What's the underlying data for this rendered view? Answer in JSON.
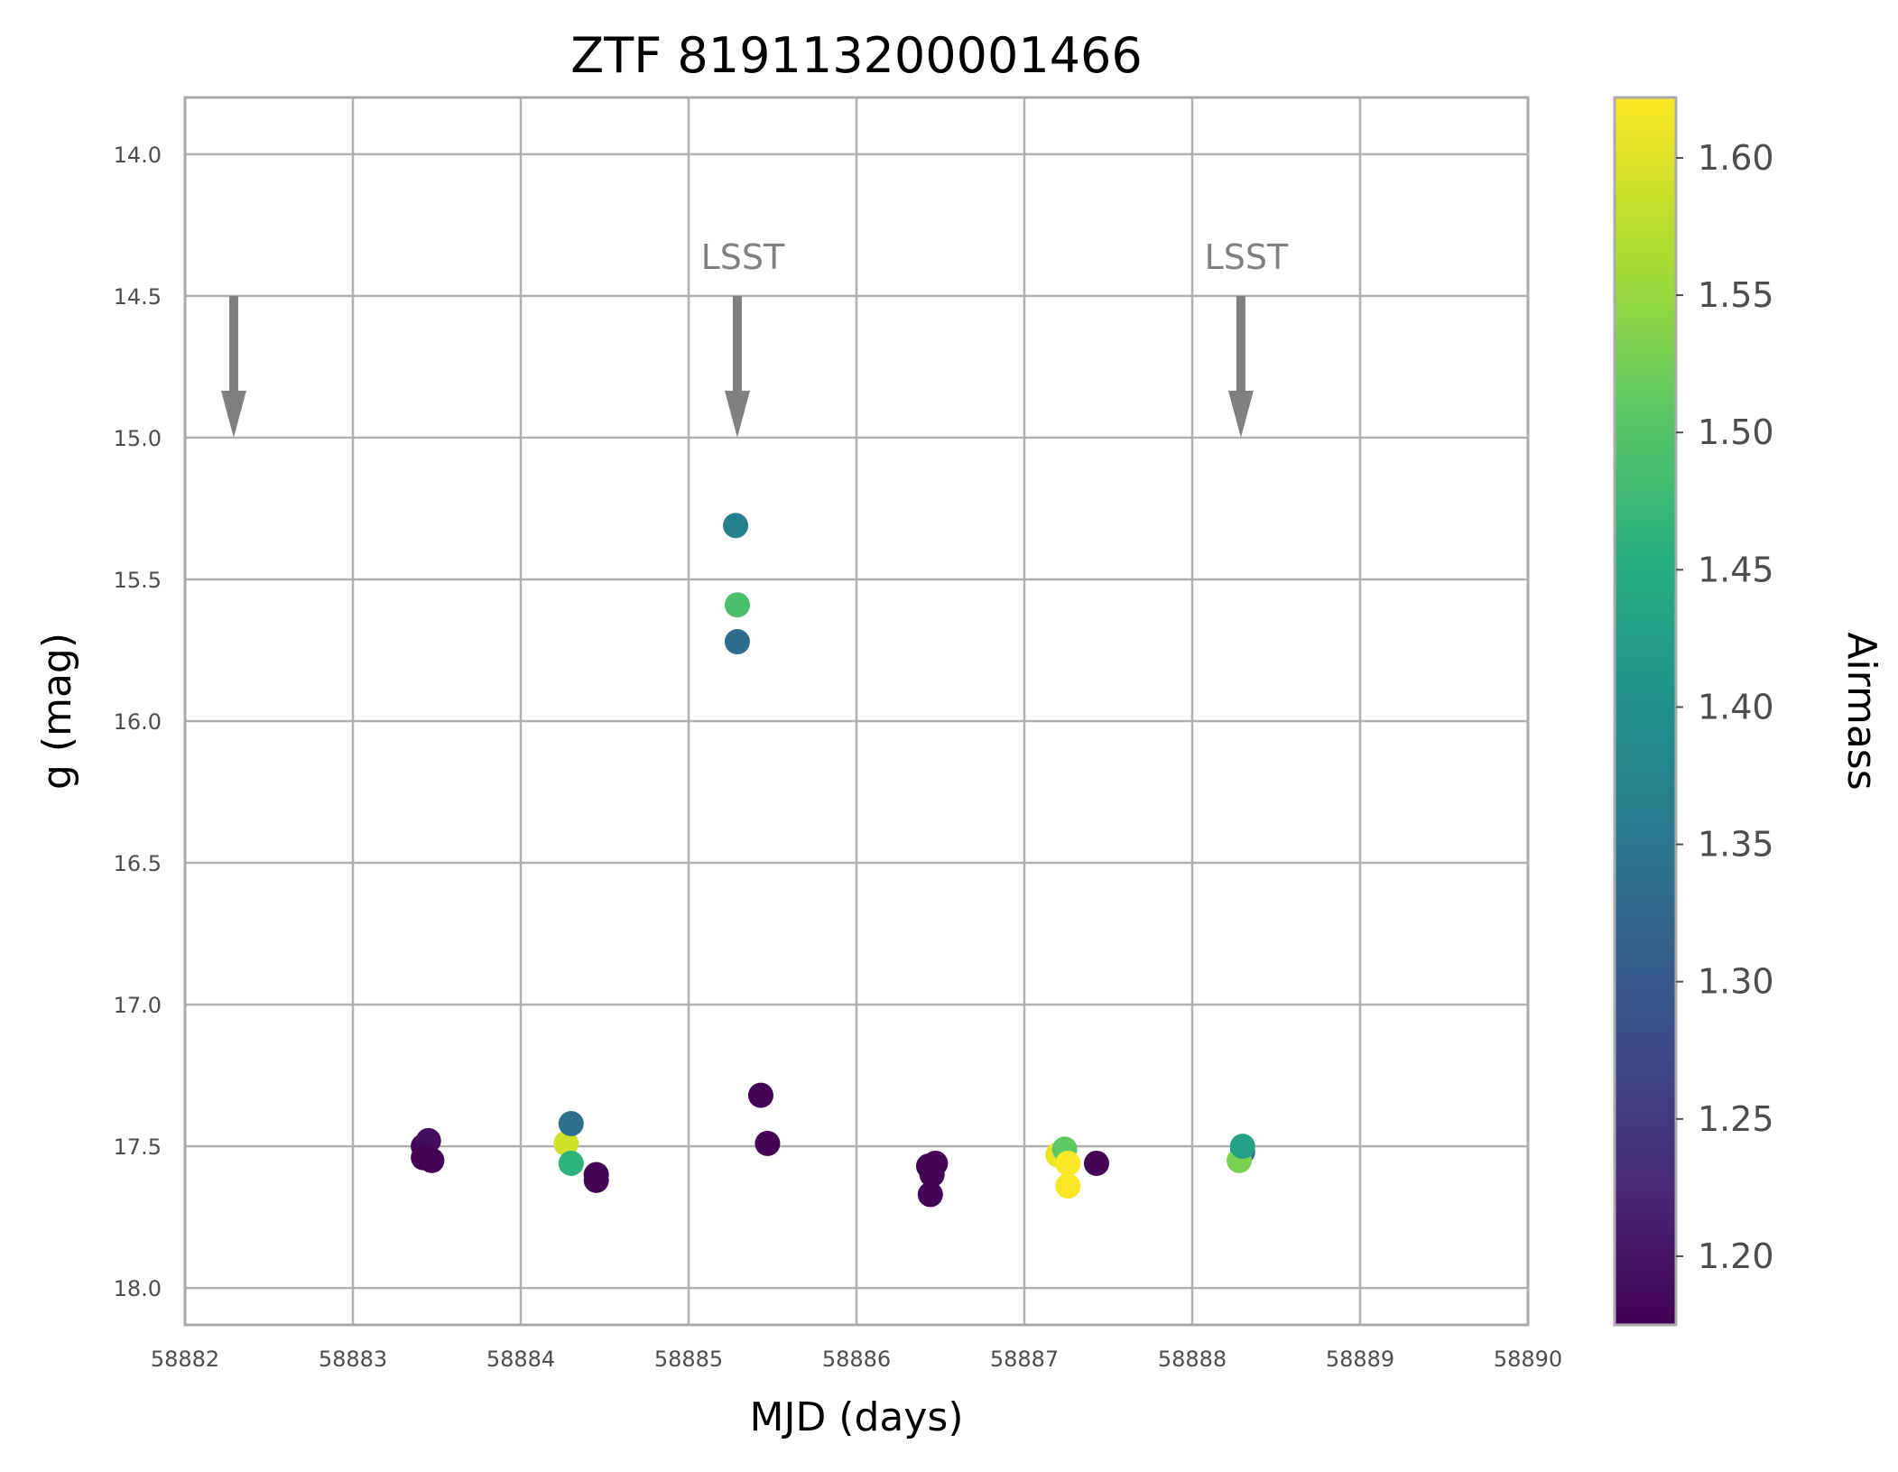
{
  "chart_data": {
    "type": "scatter",
    "title": "ZTF 819113200001466",
    "xlabel": "MJD (days)",
    "ylabel": "g (mag)",
    "xlim": [
      58882,
      58890
    ],
    "ylim": [
      18.13,
      13.8
    ],
    "y_inverted": true,
    "grid": true,
    "x_ticks": [
      "58882",
      "58883",
      "58884",
      "58885",
      "58886",
      "58887",
      "58888",
      "58889",
      "58890"
    ],
    "y_ticks": [
      "14.0",
      "14.5",
      "15.0",
      "15.5",
      "16.0",
      "16.5",
      "17.0",
      "17.5",
      "18.0"
    ],
    "colorbar": {
      "label": "Airmass",
      "colormap": "viridis",
      "range": [
        1.175,
        1.622
      ],
      "ticks": [
        "1.20",
        "1.25",
        "1.30",
        "1.35",
        "1.40",
        "1.45",
        "1.50",
        "1.55",
        "1.60"
      ]
    },
    "annotations": [
      {
        "text": "",
        "x": 58882.29,
        "arrow_from": 14.5,
        "arrow_to": 15.0
      },
      {
        "text": "LSST",
        "x": 58885.29,
        "arrow_from": 14.5,
        "arrow_to": 15.0
      },
      {
        "text": "LSST",
        "x": 58888.29,
        "arrow_from": 14.5,
        "arrow_to": 15.0
      }
    ],
    "arrow_color": "#808080",
    "points": [
      {
        "x": 58883.42,
        "y": 17.5,
        "airmass": 1.18
      },
      {
        "x": 58883.45,
        "y": 17.48,
        "airmass": 1.19
      },
      {
        "x": 58883.42,
        "y": 17.54,
        "airmass": 1.18
      },
      {
        "x": 58883.47,
        "y": 17.55,
        "airmass": 1.18
      },
      {
        "x": 58884.27,
        "y": 17.49,
        "airmass": 1.59
      },
      {
        "x": 58884.3,
        "y": 17.42,
        "airmass": 1.34
      },
      {
        "x": 58884.3,
        "y": 17.56,
        "airmass": 1.46
      },
      {
        "x": 58884.45,
        "y": 17.6,
        "airmass": 1.18
      },
      {
        "x": 58884.45,
        "y": 17.62,
        "airmass": 1.18
      },
      {
        "x": 58885.28,
        "y": 15.31,
        "airmass": 1.37
      },
      {
        "x": 58885.29,
        "y": 15.59,
        "airmass": 1.49
      },
      {
        "x": 58885.29,
        "y": 15.72,
        "airmass": 1.33
      },
      {
        "x": 58885.43,
        "y": 17.32,
        "airmass": 1.18
      },
      {
        "x": 58885.47,
        "y": 17.49,
        "airmass": 1.18
      },
      {
        "x": 58886.43,
        "y": 17.57,
        "airmass": 1.18
      },
      {
        "x": 58886.47,
        "y": 17.56,
        "airmass": 1.18
      },
      {
        "x": 58886.45,
        "y": 17.6,
        "airmass": 1.18
      },
      {
        "x": 58886.44,
        "y": 17.67,
        "airmass": 1.18
      },
      {
        "x": 58887.2,
        "y": 17.53,
        "airmass": 1.61
      },
      {
        "x": 58887.24,
        "y": 17.51,
        "airmass": 1.51
      },
      {
        "x": 58887.26,
        "y": 17.56,
        "airmass": 1.62
      },
      {
        "x": 58887.26,
        "y": 17.64,
        "airmass": 1.62
      },
      {
        "x": 58887.43,
        "y": 17.56,
        "airmass": 1.18
      },
      {
        "x": 58888.3,
        "y": 17.52,
        "airmass": 1.33
      },
      {
        "x": 58888.28,
        "y": 17.55,
        "airmass": 1.53
      },
      {
        "x": 58888.3,
        "y": 17.5,
        "airmass": 1.43
      }
    ]
  }
}
